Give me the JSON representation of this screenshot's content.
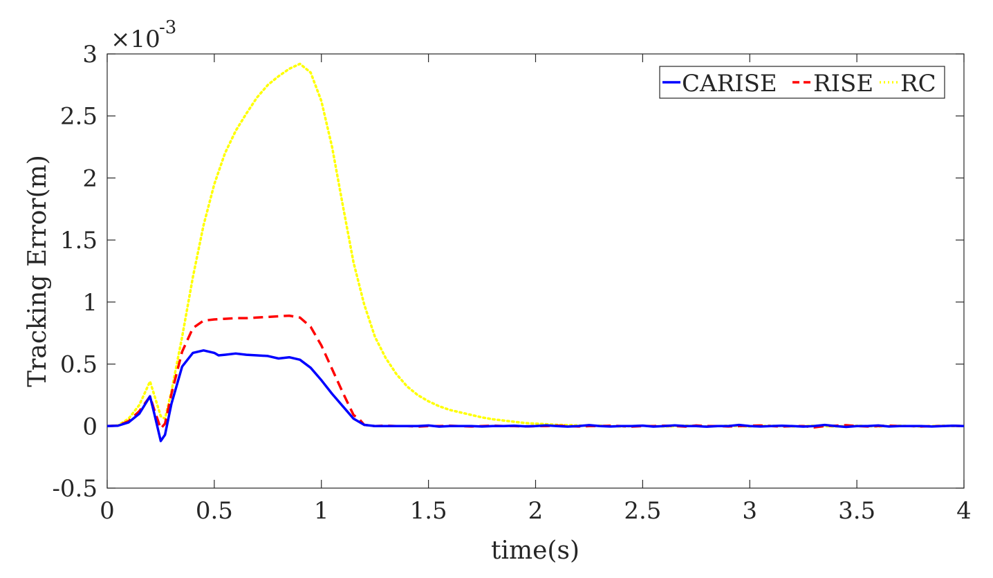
{
  "chart_data": {
    "type": "line",
    "title": "",
    "xlabel": "time(s)",
    "ylabel": "Tracking Error(m)",
    "y_exponent_label": {
      "base": "×10",
      "exponent": "-3"
    },
    "xlim": [
      0,
      4
    ],
    "ylim": [
      -0.5,
      3
    ],
    "x_ticks": [
      0,
      0.5,
      1,
      1.5,
      2,
      2.5,
      3,
      3.5,
      4
    ],
    "x_tick_labels": [
      "0",
      "0.5",
      "1",
      "1.5",
      "2",
      "2.5",
      "3",
      "3.5",
      "4"
    ],
    "y_ticks": [
      -0.5,
      0,
      0.5,
      1,
      1.5,
      2,
      2.5,
      3
    ],
    "y_tick_labels": [
      "-0.5",
      "0",
      "0.5",
      "1",
      "1.5",
      "2",
      "2.5",
      "3"
    ],
    "grid": false,
    "legend_position": "top-right",
    "series": [
      {
        "name": "CARISE",
        "color": "#0000ff",
        "style": "solid",
        "points": [
          [
            0,
            0
          ],
          [
            0.05,
            0.003
          ],
          [
            0.1,
            0.03
          ],
          [
            0.15,
            0.1
          ],
          [
            0.2,
            0.24
          ],
          [
            0.22,
            0.1
          ],
          [
            0.25,
            -0.12
          ],
          [
            0.27,
            -0.07
          ],
          [
            0.3,
            0.18
          ],
          [
            0.35,
            0.48
          ],
          [
            0.4,
            0.59
          ],
          [
            0.45,
            0.61
          ],
          [
            0.5,
            0.59
          ],
          [
            0.52,
            0.57
          ],
          [
            0.55,
            0.575
          ],
          [
            0.6,
            0.585
          ],
          [
            0.65,
            0.575
          ],
          [
            0.7,
            0.57
          ],
          [
            0.75,
            0.565
          ],
          [
            0.8,
            0.545
          ],
          [
            0.85,
            0.555
          ],
          [
            0.9,
            0.535
          ],
          [
            0.95,
            0.47
          ],
          [
            1.0,
            0.37
          ],
          [
            1.05,
            0.26
          ],
          [
            1.1,
            0.16
          ],
          [
            1.15,
            0.06
          ],
          [
            1.2,
            0.01
          ],
          [
            1.25,
            0.0
          ],
          [
            1.3,
            0.0
          ],
          [
            1.35,
            0.0
          ],
          [
            1.4,
            0.0
          ],
          [
            1.45,
            0.0
          ],
          [
            1.5,
            0.005
          ],
          [
            1.55,
            -0.004
          ],
          [
            1.6,
            0.0
          ],
          [
            1.65,
            0.0
          ],
          [
            1.7,
            0.0
          ],
          [
            1.75,
            -0.003
          ],
          [
            1.8,
            0.0
          ],
          [
            1.85,
            0.0
          ],
          [
            1.9,
            0.003
          ],
          [
            1.95,
            -0.002
          ],
          [
            2.0,
            0.0
          ],
          [
            2.05,
            0.006
          ],
          [
            2.1,
            0.0
          ],
          [
            2.15,
            -0.004
          ],
          [
            2.2,
            0.0
          ],
          [
            2.25,
            0.008
          ],
          [
            2.3,
            0.0
          ],
          [
            2.35,
            -0.003
          ],
          [
            2.4,
            0.0
          ],
          [
            2.45,
            0.0
          ],
          [
            2.5,
            0.004
          ],
          [
            2.55,
            -0.004
          ],
          [
            2.6,
            0.0
          ],
          [
            2.65,
            0.006
          ],
          [
            2.7,
            0.0
          ],
          [
            2.75,
            0.0
          ],
          [
            2.8,
            -0.005
          ],
          [
            2.85,
            0.0
          ],
          [
            2.9,
            0.0
          ],
          [
            2.95,
            0.009
          ],
          [
            3.0,
            0.0
          ],
          [
            3.05,
            -0.003
          ],
          [
            3.1,
            0.0
          ],
          [
            3.15,
            0.003
          ],
          [
            3.2,
            0.0
          ],
          [
            3.25,
            -0.004
          ],
          [
            3.3,
            0.0
          ],
          [
            3.35,
            0.009
          ],
          [
            3.4,
            0.0
          ],
          [
            3.45,
            -0.007
          ],
          [
            3.5,
            0.0
          ],
          [
            3.55,
            0.0
          ],
          [
            3.6,
            0.005
          ],
          [
            3.65,
            -0.003
          ],
          [
            3.7,
            0.0
          ],
          [
            3.75,
            0.0
          ],
          [
            3.8,
            0.0
          ],
          [
            3.85,
            -0.003
          ],
          [
            3.9,
            0.0
          ],
          [
            3.95,
            0.003
          ],
          [
            4.0,
            0.0
          ]
        ]
      },
      {
        "name": "RISE",
        "color": "#ff0000",
        "style": "dashed",
        "points": [
          [
            0,
            0
          ],
          [
            0.05,
            0.004
          ],
          [
            0.1,
            0.04
          ],
          [
            0.15,
            0.12
          ],
          [
            0.2,
            0.24
          ],
          [
            0.22,
            0.13
          ],
          [
            0.25,
            -0.02
          ],
          [
            0.27,
            0.02
          ],
          [
            0.3,
            0.26
          ],
          [
            0.35,
            0.6
          ],
          [
            0.4,
            0.79
          ],
          [
            0.45,
            0.85
          ],
          [
            0.5,
            0.86
          ],
          [
            0.55,
            0.865
          ],
          [
            0.6,
            0.87
          ],
          [
            0.65,
            0.87
          ],
          [
            0.7,
            0.875
          ],
          [
            0.75,
            0.88
          ],
          [
            0.8,
            0.885
          ],
          [
            0.85,
            0.89
          ],
          [
            0.9,
            0.875
          ],
          [
            0.95,
            0.8
          ],
          [
            1.0,
            0.65
          ],
          [
            1.05,
            0.46
          ],
          [
            1.1,
            0.27
          ],
          [
            1.15,
            0.09
          ],
          [
            1.18,
            0.05
          ],
          [
            1.2,
            0.01
          ],
          [
            1.25,
            0.0
          ],
          [
            1.3,
            0.004
          ],
          [
            1.35,
            0.0
          ],
          [
            1.4,
            0.0
          ],
          [
            1.45,
            -0.004
          ],
          [
            1.5,
            0.0
          ],
          [
            1.55,
            0.0
          ],
          [
            1.6,
            0.003
          ],
          [
            1.65,
            0.0
          ],
          [
            1.7,
            -0.003
          ],
          [
            1.75,
            0.0
          ],
          [
            1.8,
            0.004
          ],
          [
            1.85,
            0.0
          ],
          [
            1.9,
            0.0
          ],
          [
            1.95,
            -0.003
          ],
          [
            2.0,
            0.0
          ],
          [
            2.05,
            0.0
          ],
          [
            2.1,
            0.004
          ],
          [
            2.15,
            0.0
          ],
          [
            2.2,
            -0.003
          ],
          [
            2.25,
            0.0
          ],
          [
            2.3,
            0.0
          ],
          [
            2.35,
            0.003
          ],
          [
            2.4,
            0.0
          ],
          [
            2.45,
            -0.004
          ],
          [
            2.5,
            0.0
          ],
          [
            2.55,
            0.0
          ],
          [
            2.6,
            0.003
          ],
          [
            2.65,
            0.0
          ],
          [
            2.7,
            -0.004
          ],
          [
            2.75,
            0.005
          ],
          [
            2.8,
            0.0
          ],
          [
            2.85,
            0.0
          ],
          [
            2.9,
            -0.003
          ],
          [
            2.95,
            0.0
          ],
          [
            3.0,
            0.003
          ],
          [
            3.05,
            0.005
          ],
          [
            3.1,
            0.0
          ],
          [
            3.15,
            -0.004
          ],
          [
            3.2,
            0.0
          ],
          [
            3.25,
            0.0
          ],
          [
            3.3,
            -0.01
          ],
          [
            3.35,
            0.0
          ],
          [
            3.4,
            0.003
          ],
          [
            3.45,
            0.007
          ],
          [
            3.5,
            0.0
          ],
          [
            3.55,
            -0.003
          ],
          [
            3.6,
            0.0
          ],
          [
            3.65,
            0.004
          ],
          [
            3.7,
            0.0
          ],
          [
            3.75,
            0.0
          ],
          [
            3.8,
            -0.003
          ],
          [
            3.85,
            0.0
          ],
          [
            3.9,
            0.0
          ],
          [
            3.95,
            0.003
          ],
          [
            4.0,
            0.0
          ]
        ]
      },
      {
        "name": "RC",
        "color": "#ffff00",
        "style": "dotted",
        "points": [
          [
            0,
            0
          ],
          [
            0.05,
            0.005
          ],
          [
            0.1,
            0.06
          ],
          [
            0.15,
            0.17
          ],
          [
            0.2,
            0.36
          ],
          [
            0.22,
            0.25
          ],
          [
            0.25,
            0.08
          ],
          [
            0.27,
            0.06
          ],
          [
            0.3,
            0.28
          ],
          [
            0.35,
            0.72
          ],
          [
            0.4,
            1.2
          ],
          [
            0.45,
            1.62
          ],
          [
            0.5,
            1.95
          ],
          [
            0.55,
            2.2
          ],
          [
            0.6,
            2.38
          ],
          [
            0.65,
            2.52
          ],
          [
            0.7,
            2.65
          ],
          [
            0.75,
            2.75
          ],
          [
            0.8,
            2.82
          ],
          [
            0.85,
            2.88
          ],
          [
            0.9,
            2.92
          ],
          [
            0.95,
            2.85
          ],
          [
            1.0,
            2.62
          ],
          [
            1.05,
            2.25
          ],
          [
            1.1,
            1.78
          ],
          [
            1.15,
            1.32
          ],
          [
            1.2,
            0.98
          ],
          [
            1.25,
            0.72
          ],
          [
            1.3,
            0.55
          ],
          [
            1.35,
            0.42
          ],
          [
            1.4,
            0.32
          ],
          [
            1.45,
            0.25
          ],
          [
            1.5,
            0.2
          ],
          [
            1.55,
            0.16
          ],
          [
            1.6,
            0.13
          ],
          [
            1.65,
            0.11
          ],
          [
            1.7,
            0.09
          ],
          [
            1.75,
            0.07
          ],
          [
            1.8,
            0.055
          ],
          [
            1.85,
            0.045
          ],
          [
            1.9,
            0.035
          ],
          [
            1.95,
            0.025
          ],
          [
            2.0,
            0.02
          ],
          [
            2.05,
            0.015
          ],
          [
            2.1,
            0.01
          ],
          [
            2.15,
            0.008
          ],
          [
            2.2,
            0.005
          ],
          [
            2.25,
            0.0
          ],
          [
            2.3,
            0.004
          ],
          [
            2.35,
            0.0
          ],
          [
            2.4,
            -0.003
          ],
          [
            2.45,
            0.0
          ],
          [
            2.5,
            0.003
          ],
          [
            2.55,
            0.0
          ],
          [
            2.6,
            -0.003
          ],
          [
            2.65,
            0.0
          ],
          [
            2.7,
            0.004
          ],
          [
            2.75,
            0.0
          ],
          [
            2.8,
            -0.003
          ],
          [
            2.85,
            0.0
          ],
          [
            2.9,
            0.003
          ],
          [
            2.95,
            0.0
          ],
          [
            3.0,
            -0.003
          ],
          [
            3.05,
            0.0
          ],
          [
            3.1,
            0.003
          ],
          [
            3.15,
            0.0
          ],
          [
            3.2,
            -0.003
          ],
          [
            3.25,
            0.0
          ],
          [
            3.3,
            0.003
          ],
          [
            3.35,
            0.0
          ],
          [
            3.4,
            -0.003
          ],
          [
            3.45,
            0.0
          ],
          [
            3.5,
            0.003
          ],
          [
            3.55,
            0.0
          ],
          [
            3.6,
            -0.003
          ],
          [
            3.65,
            0.0
          ],
          [
            3.7,
            0.003
          ],
          [
            3.75,
            0.0
          ],
          [
            3.8,
            -0.003
          ],
          [
            3.85,
            0.0
          ],
          [
            3.9,
            0.003
          ],
          [
            3.95,
            0.0
          ],
          [
            4.0,
            0.0
          ]
        ]
      }
    ]
  }
}
